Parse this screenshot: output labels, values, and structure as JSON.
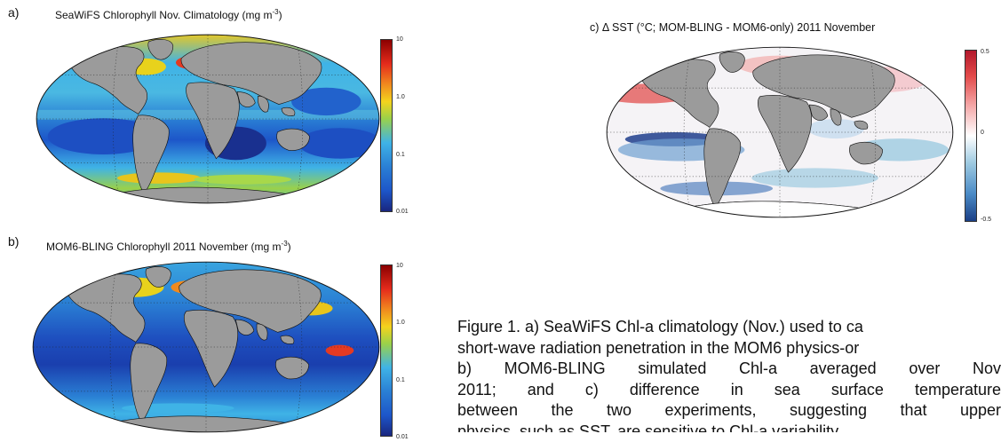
{
  "panel_a": {
    "letter": "a)",
    "title": "SeaWiFS Chlorophyll Nov. Climatology (mg m",
    "title_sup": "-3",
    "title_end": ")",
    "colorbar_ticks": [
      "10",
      "1.0",
      "0.1",
      "0.01"
    ],
    "colors": [
      "#8b0000",
      "#e52b1c",
      "#f4d31d",
      "#3fb3e6",
      "#1d56c9",
      "#19267f"
    ]
  },
  "panel_b": {
    "letter": "b)",
    "title": "MOM6-BLING Chlorophyll 2011 November (mg m",
    "title_sup": "-3",
    "title_end": ")",
    "colorbar_ticks": [
      "10",
      "1.0",
      "0.1",
      "0.01"
    ]
  },
  "panel_c": {
    "title": "c)  Δ SST (°C; MOM-BLING - MOM6-only) 2011 November",
    "colorbar_ticks": [
      "0.5",
      "0",
      "-0.5"
    ],
    "colors": [
      "#b2182b",
      "#f4a6a6",
      "#ffffff",
      "#9ecae1",
      "#2166ac"
    ]
  },
  "caption": {
    "line1": "Figure 1. a) SeaWiFS Chl-a climatology (Nov.) used to ca",
    "line2": "short-wave radiation penetration in the MOM6 physics-or",
    "line3": "b) MOM6-BLING simulated Chl-a averaged over Nov",
    "line4": "2011; and c) difference in sea surface temperature",
    "line5": "between the two experiments, suggesting that upper",
    "line6": "physics, such as SST, are sensitive to Chl-a variability."
  },
  "land_color": "#9b9b9b"
}
